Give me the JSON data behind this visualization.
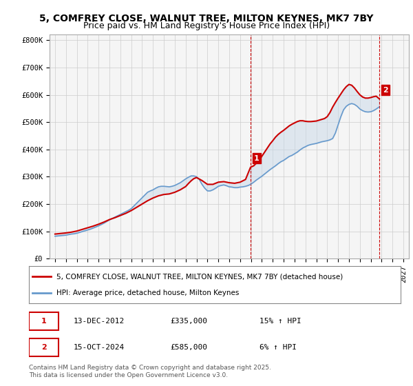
{
  "title": "5, COMFREY CLOSE, WALNUT TREE, MILTON KEYNES, MK7 7BY",
  "subtitle": "Price paid vs. HM Land Registry's House Price Index (HPI)",
  "ylabel_ticks": [
    "£0",
    "£100K",
    "£200K",
    "£300K",
    "£400K",
    "£500K",
    "£600K",
    "£700K",
    "£800K"
  ],
  "ytick_values": [
    0,
    100000,
    200000,
    300000,
    400000,
    500000,
    600000,
    700000,
    800000
  ],
  "ylim": [
    0,
    820000
  ],
  "xlim_years": [
    1994.5,
    2027.5
  ],
  "xtick_years": [
    1995,
    1996,
    1997,
    1998,
    1999,
    2000,
    2001,
    2002,
    2003,
    2004,
    2005,
    2006,
    2007,
    2008,
    2009,
    2010,
    2011,
    2012,
    2013,
    2014,
    2015,
    2016,
    2017,
    2018,
    2019,
    2020,
    2021,
    2022,
    2023,
    2024,
    2025,
    2026,
    2027
  ],
  "line1_color": "#cc0000",
  "line2_color": "#6699cc",
  "fill_color": "#c8d8e8",
  "grid_color": "#cccccc",
  "background_color": "#f5f5f5",
  "sale1_x": 2012.96,
  "sale1_y": 335000,
  "sale1_label": "1",
  "sale2_x": 2024.79,
  "sale2_y": 585000,
  "sale2_label": "2",
  "legend_label1": "5, COMFREY CLOSE, WALNUT TREE, MILTON KEYNES, MK7 7BY (detached house)",
  "legend_label2": "HPI: Average price, detached house, Milton Keynes",
  "table_row1": [
    "1",
    "13-DEC-2012",
    "£335,000",
    "15% ↑ HPI"
  ],
  "table_row2": [
    "2",
    "15-OCT-2024",
    "£585,000",
    "6% ↑ HPI"
  ],
  "footer": "Contains HM Land Registry data © Crown copyright and database right 2025.\nThis data is licensed under the Open Government Licence v3.0.",
  "title_fontsize": 10,
  "subtitle_fontsize": 9,
  "tick_fontsize": 7.5,
  "hpi_years": [
    1995.0,
    1995.25,
    1995.5,
    1995.75,
    1996.0,
    1996.25,
    1996.5,
    1996.75,
    1997.0,
    1997.25,
    1997.5,
    1997.75,
    1998.0,
    1998.25,
    1998.5,
    1998.75,
    1999.0,
    1999.25,
    1999.5,
    1999.75,
    2000.0,
    2000.25,
    2000.5,
    2000.75,
    2001.0,
    2001.25,
    2001.5,
    2001.75,
    2002.0,
    2002.25,
    2002.5,
    2002.75,
    2003.0,
    2003.25,
    2003.5,
    2003.75,
    2004.0,
    2004.25,
    2004.5,
    2004.75,
    2005.0,
    2005.25,
    2005.5,
    2005.75,
    2006.0,
    2006.25,
    2006.5,
    2006.75,
    2007.0,
    2007.25,
    2007.5,
    2007.75,
    2008.0,
    2008.25,
    2008.5,
    2008.75,
    2009.0,
    2009.25,
    2009.5,
    2009.75,
    2010.0,
    2010.25,
    2010.5,
    2010.75,
    2011.0,
    2011.25,
    2011.5,
    2011.75,
    2012.0,
    2012.25,
    2012.5,
    2012.75,
    2013.0,
    2013.25,
    2013.5,
    2013.75,
    2014.0,
    2014.25,
    2014.5,
    2014.75,
    2015.0,
    2015.25,
    2015.5,
    2015.75,
    2016.0,
    2016.25,
    2016.5,
    2016.75,
    2017.0,
    2017.25,
    2017.5,
    2017.75,
    2018.0,
    2018.25,
    2018.5,
    2018.75,
    2019.0,
    2019.25,
    2019.5,
    2019.75,
    2020.0,
    2020.25,
    2020.5,
    2020.75,
    2021.0,
    2021.25,
    2021.5,
    2021.75,
    2022.0,
    2022.25,
    2022.5,
    2022.75,
    2023.0,
    2023.25,
    2023.5,
    2023.75,
    2024.0,
    2024.25,
    2024.5,
    2024.75
  ],
  "hpi_values": [
    82000,
    83000,
    84000,
    85000,
    86000,
    88000,
    90000,
    91000,
    93000,
    96000,
    99000,
    102000,
    105000,
    108000,
    112000,
    116000,
    120000,
    125000,
    130000,
    136000,
    142000,
    147000,
    152000,
    157000,
    162000,
    167000,
    172000,
    177000,
    183000,
    193000,
    203000,
    213000,
    223000,
    233000,
    243000,
    248000,
    252000,
    258000,
    263000,
    265000,
    265000,
    264000,
    263000,
    265000,
    268000,
    273000,
    278000,
    285000,
    292000,
    298000,
    303000,
    303000,
    300000,
    290000,
    272000,
    258000,
    248000,
    248000,
    252000,
    258000,
    265000,
    268000,
    270000,
    267000,
    263000,
    262000,
    260000,
    260000,
    262000,
    263000,
    265000,
    268000,
    273000,
    280000,
    288000,
    295000,
    302000,
    310000,
    318000,
    326000,
    333000,
    340000,
    348000,
    355000,
    360000,
    367000,
    374000,
    378000,
    384000,
    390000,
    398000,
    405000,
    410000,
    415000,
    418000,
    420000,
    422000,
    425000,
    428000,
    430000,
    432000,
    435000,
    440000,
    460000,
    490000,
    520000,
    545000,
    558000,
    565000,
    568000,
    565000,
    558000,
    548000,
    542000,
    538000,
    537000,
    538000,
    542000,
    548000,
    555000
  ],
  "price_line_years": [
    1995.0,
    1995.5,
    1996.0,
    1996.5,
    1997.0,
    1997.5,
    1998.0,
    1998.5,
    1999.0,
    1999.5,
    2000.0,
    2000.5,
    2001.0,
    2001.5,
    2002.0,
    2002.5,
    2003.0,
    2003.5,
    2004.0,
    2004.5,
    2005.0,
    2005.5,
    2006.0,
    2006.5,
    2007.0,
    2007.25,
    2007.5,
    2007.75,
    2008.0,
    2008.5,
    2009.0,
    2009.5,
    2010.0,
    2010.5,
    2011.0,
    2011.5,
    2012.0,
    2012.5,
    2012.96,
    2013.25,
    2013.5,
    2013.75,
    2014.0,
    2014.25,
    2014.5,
    2014.75,
    2015.0,
    2015.25,
    2015.5,
    2015.75,
    2016.0,
    2016.25,
    2016.5,
    2016.75,
    2017.0,
    2017.25,
    2017.5,
    2017.75,
    2018.0,
    2018.25,
    2018.5,
    2018.75,
    2019.0,
    2019.25,
    2019.5,
    2019.75,
    2020.0,
    2020.25,
    2020.5,
    2020.75,
    2021.0,
    2021.25,
    2021.5,
    2021.75,
    2022.0,
    2022.25,
    2022.5,
    2022.75,
    2023.0,
    2023.25,
    2023.5,
    2023.75,
    2024.0,
    2024.25,
    2024.5,
    2024.79
  ],
  "price_line_values": [
    90000,
    92000,
    94000,
    97000,
    101000,
    107000,
    113000,
    119000,
    126000,
    134000,
    143000,
    150000,
    158000,
    166000,
    176000,
    188000,
    200000,
    212000,
    222000,
    230000,
    235000,
    237000,
    243000,
    252000,
    264000,
    275000,
    285000,
    293000,
    297000,
    286000,
    272000,
    272000,
    280000,
    282000,
    278000,
    276000,
    280000,
    290000,
    335000,
    340000,
    350000,
    360000,
    375000,
    390000,
    405000,
    420000,
    432000,
    445000,
    455000,
    463000,
    470000,
    478000,
    486000,
    492000,
    497000,
    502000,
    505000,
    505000,
    503000,
    502000,
    502000,
    503000,
    504000,
    507000,
    510000,
    513000,
    520000,
    535000,
    555000,
    572000,
    588000,
    603000,
    618000,
    630000,
    638000,
    635000,
    625000,
    612000,
    600000,
    592000,
    588000,
    588000,
    590000,
    593000,
    595000,
    585000
  ]
}
